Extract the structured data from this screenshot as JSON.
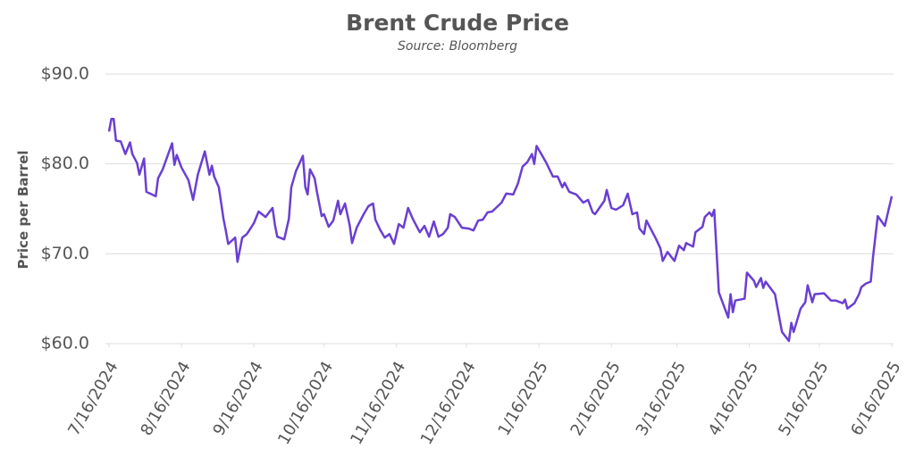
{
  "chart_data": {
    "type": "line",
    "title": "Brent Crude Price",
    "subtitle": "Source: Bloomberg",
    "y_label": "Price per Barrel",
    "x": [
      "2024-07-16",
      "2024-07-17",
      "2024-07-18",
      "2024-07-19",
      "2024-07-21",
      "2024-07-23",
      "2024-07-25",
      "2024-07-26",
      "2024-07-28",
      "2024-07-29",
      "2024-07-31",
      "2024-08-01",
      "2024-08-05",
      "2024-08-06",
      "2024-08-08",
      "2024-08-12",
      "2024-08-13",
      "2024-08-14",
      "2024-08-16",
      "2024-08-19",
      "2024-08-21",
      "2024-08-23",
      "2024-08-26",
      "2024-08-28",
      "2024-08-29",
      "2024-08-30",
      "2024-09-01",
      "2024-09-03",
      "2024-09-04",
      "2024-09-05",
      "2024-09-08",
      "2024-09-09",
      "2024-09-11",
      "2024-09-13",
      "2024-09-16",
      "2024-09-18",
      "2024-09-21",
      "2024-09-24",
      "2024-09-25",
      "2024-09-26",
      "2024-09-29",
      "2024-10-01",
      "2024-10-02",
      "2024-10-04",
      "2024-10-07",
      "2024-10-08",
      "2024-10-09",
      "2024-10-10",
      "2024-10-12",
      "2024-10-13",
      "2024-10-15",
      "2024-10-16",
      "2024-10-18",
      "2024-10-20",
      "2024-10-22",
      "2024-10-23",
      "2024-10-25",
      "2024-10-27",
      "2024-10-28",
      "2024-10-30",
      "2024-11-02",
      "2024-11-04",
      "2024-11-06",
      "2024-11-07",
      "2024-11-09",
      "2024-11-11",
      "2024-11-13",
      "2024-11-15",
      "2024-11-17",
      "2024-11-19",
      "2024-11-21",
      "2024-11-23",
      "2024-11-26",
      "2024-11-28",
      "2024-11-30",
      "2024-12-02",
      "2024-12-04",
      "2024-12-06",
      "2024-12-08",
      "2024-12-09",
      "2024-12-11",
      "2024-12-14",
      "2024-12-17",
      "2024-12-19",
      "2024-12-21",
      "2024-12-23",
      "2024-12-25",
      "2024-12-27",
      "2024-12-31",
      "2025-01-02",
      "2025-01-05",
      "2025-01-07",
      "2025-01-09",
      "2025-01-11",
      "2025-01-13",
      "2025-01-14",
      "2025-01-15",
      "2025-01-17",
      "2025-01-19",
      "2025-01-22",
      "2025-01-24",
      "2025-01-26",
      "2025-01-27",
      "2025-01-29",
      "2025-02-01",
      "2025-02-04",
      "2025-02-06",
      "2025-02-08",
      "2025-02-09",
      "2025-02-13",
      "2025-02-14",
      "2025-02-16",
      "2025-02-18",
      "2025-02-21",
      "2025-02-23",
      "2025-02-25",
      "2025-02-27",
      "2025-02-28",
      "2025-03-02",
      "2025-03-03",
      "2025-03-07",
      "2025-03-09",
      "2025-03-10",
      "2025-03-12",
      "2025-03-15",
      "2025-03-17",
      "2025-03-19",
      "2025-03-20",
      "2025-03-23",
      "2025-03-24",
      "2025-03-27",
      "2025-03-28",
      "2025-03-30",
      "2025-03-31",
      "2025-04-01",
      "2025-04-03",
      "2025-04-05",
      "2025-04-07",
      "2025-04-08",
      "2025-04-09",
      "2025-04-10",
      "2025-04-14",
      "2025-04-15",
      "2025-04-18",
      "2025-04-19",
      "2025-04-21",
      "2025-04-22",
      "2025-04-23",
      "2025-04-27",
      "2025-04-30",
      "2025-05-03",
      "2025-05-04",
      "2025-05-05",
      "2025-05-08",
      "2025-05-10",
      "2025-05-11",
      "2025-05-13",
      "2025-05-14",
      "2025-05-18",
      "2025-05-21",
      "2025-05-23",
      "2025-05-26",
      "2025-05-27",
      "2025-05-28",
      "2025-05-31",
      "2025-06-02",
      "2025-06-03",
      "2025-06-05",
      "2025-06-07",
      "2025-06-08",
      "2025-06-10",
      "2025-06-13",
      "2025-06-16"
    ],
    "series": [
      {
        "name": "Brent Crude",
        "color": "#6a3fd1",
        "values": [
          83.6,
          85.0,
          85.0,
          82.6,
          82.5,
          81.1,
          82.4,
          81.1,
          80.1,
          78.8,
          80.6,
          76.9,
          76.4,
          78.4,
          79.4,
          82.3,
          79.9,
          81.0,
          79.6,
          78.2,
          76.0,
          78.8,
          81.4,
          78.8,
          79.8,
          78.6,
          77.4,
          73.9,
          72.6,
          71.1,
          71.8,
          69.1,
          71.8,
          72.2,
          73.4,
          74.7,
          74.1,
          75.1,
          73.2,
          71.9,
          71.6,
          73.9,
          77.4,
          79.2,
          80.9,
          77.4,
          76.6,
          79.4,
          78.4,
          76.9,
          74.2,
          74.4,
          73.0,
          73.7,
          75.9,
          74.4,
          75.6,
          73.2,
          71.2,
          72.9,
          74.4,
          75.3,
          75.6,
          73.8,
          72.7,
          71.8,
          72.2,
          71.1,
          73.3,
          72.9,
          75.1,
          73.9,
          72.4,
          73.1,
          71.9,
          73.6,
          71.9,
          72.2,
          72.9,
          74.4,
          74.1,
          72.9,
          72.8,
          72.6,
          73.7,
          73.8,
          74.6,
          74.7,
          75.7,
          76.7,
          76.6,
          77.8,
          79.7,
          80.2,
          81.1,
          80.0,
          82.0,
          81.1,
          80.2,
          78.6,
          78.6,
          77.4,
          77.9,
          76.9,
          76.6,
          75.7,
          76.0,
          74.6,
          74.4,
          75.9,
          77.1,
          75.1,
          74.9,
          75.4,
          76.7,
          74.4,
          74.6,
          72.8,
          72.2,
          73.7,
          71.7,
          70.6,
          69.2,
          70.2,
          69.2,
          70.9,
          70.4,
          71.2,
          70.8,
          72.4,
          73.0,
          74.1,
          74.6,
          74.2,
          74.9,
          65.7,
          64.3,
          62.9,
          65.5,
          63.5,
          64.8,
          65.0,
          67.9,
          67.0,
          66.3,
          67.3,
          66.2,
          66.9,
          65.5,
          61.3,
          60.3,
          62.3,
          61.3,
          63.9,
          64.6,
          66.5,
          64.6,
          65.5,
          65.6,
          64.8,
          64.8,
          64.5,
          64.9,
          63.9,
          64.5,
          65.5,
          66.3,
          66.7,
          66.9,
          69.7,
          74.2,
          73.1,
          76.4
        ]
      }
    ],
    "xlim": [
      "2024-07-16",
      "2025-06-16"
    ],
    "xticks": [
      {
        "value": "2024-07-16",
        "label": "7/16/2024"
      },
      {
        "value": "2024-08-16",
        "label": "8/16/2024"
      },
      {
        "value": "2024-09-16",
        "label": "9/16/2024"
      },
      {
        "value": "2024-10-16",
        "label": "10/16/2024"
      },
      {
        "value": "2024-11-16",
        "label": "11/16/2024"
      },
      {
        "value": "2024-12-16",
        "label": "12/16/2024"
      },
      {
        "value": "2025-01-16",
        "label": "1/16/2025"
      },
      {
        "value": "2025-02-16",
        "label": "2/16/2025"
      },
      {
        "value": "2025-03-16",
        "label": "3/16/2025"
      },
      {
        "value": "2025-04-16",
        "label": "4/16/2025"
      },
      {
        "value": "2025-05-16",
        "label": "5/16/2025"
      },
      {
        "value": "2025-06-16",
        "label": "6/16/2025"
      }
    ],
    "ylim": [
      60,
      90
    ],
    "yticks": [
      {
        "value": 60,
        "label": "$60.0"
      },
      {
        "value": 70,
        "label": "$70.0"
      },
      {
        "value": 80,
        "label": "$80.0"
      },
      {
        "value": 90,
        "label": "$90.0"
      }
    ],
    "grid": true
  }
}
